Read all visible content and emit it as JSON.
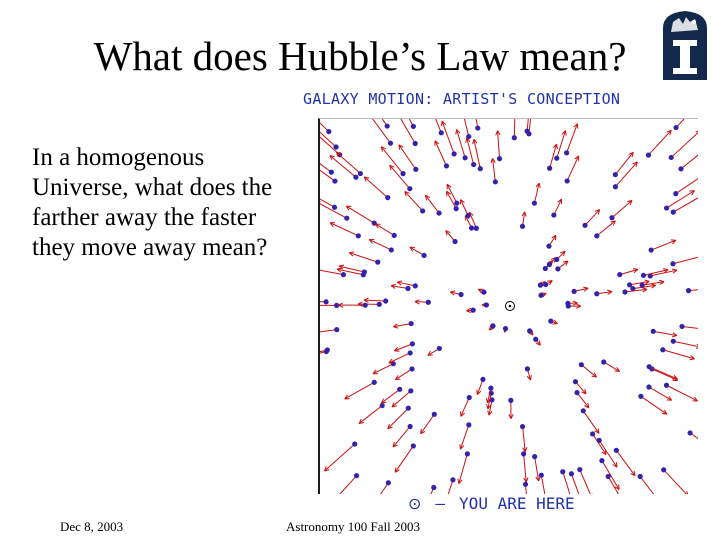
{
  "slide": {
    "title": "What does Hubble’s Law mean?",
    "body": "In a homogenous Universe, what does the farther away the faster they move away mean?"
  },
  "figure": {
    "caption": "GALAXY MOTION: ARTIST'S CONCEPTION",
    "legend_symbol": "⊙",
    "legend_dash": "–",
    "legend_text": "YOU ARE HERE",
    "arrow_color": "#cc1111",
    "galaxy_color": "#3322aa",
    "caption_color": "#2233aa"
  },
  "footer": {
    "date": "Dec 8, 2003",
    "course": "Astronomy 100 Fall 2003"
  },
  "logo": {
    "icon": "illinois-block-i-logo",
    "color": "#13294b"
  }
}
